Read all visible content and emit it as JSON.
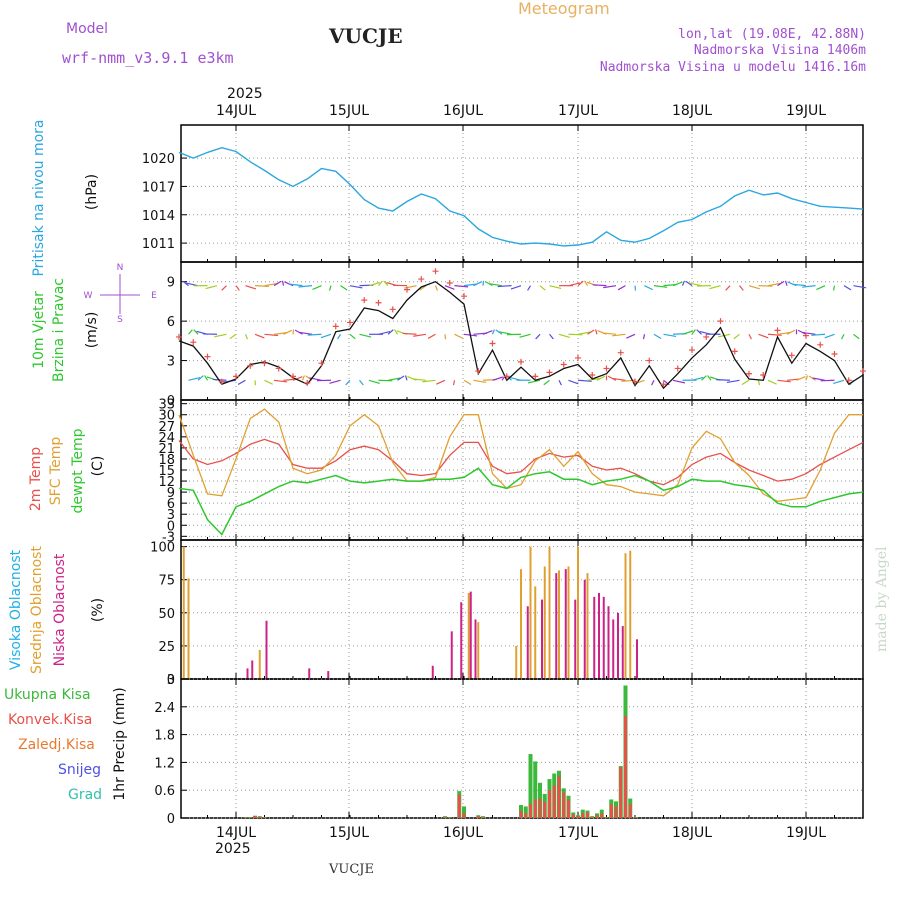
{
  "header": {
    "model_label": "Model",
    "model_name": "wrf-nmm_v3.9.1  e3km",
    "station": "VUCJE",
    "product": "Meteogram",
    "lonlat": "lon,lat (19.08E, 42.88N)",
    "elevation": "Nadmorska Visina 1406m",
    "elevation_model": "Nadmorska Visina u modelu 1416.16m",
    "watermark": "made by Angel",
    "footer_station": "VUCJE"
  },
  "colors": {
    "pressure": "#2aa6e0",
    "temp2m": "#e8504a",
    "sfc": "#e0a030",
    "dewpt": "#2ec82e",
    "high_cloud": "#20b0e8",
    "mid_cloud": "#e0a030",
    "low_cloud": "#cc2288",
    "precip_total": "#3cb83c",
    "precip_conv": "#e8504a",
    "precip_frozen": "#e87a30",
    "snow": "#5050e0",
    "hail": "#30c0b0",
    "purple_text": "#a050d0",
    "orange_text": "#e8b060"
  },
  "x_axis": {
    "year": "2025",
    "days": [
      "14JUL",
      "15JUL",
      "16JUL",
      "17JUL",
      "18JUL",
      "19JUL"
    ],
    "start_hour": 0,
    "end_hour": 144
  },
  "panels": {
    "pressure": {
      "label_a": "Pritisak na nivou mora",
      "label_b": "(hPa)",
      "ticks": [
        "1011",
        "1014",
        "1017",
        "1020"
      ]
    },
    "wind": {
      "label_a": "10m Vjetar",
      "label_b": "Brzina i Pravac",
      "label_c": "(m/s)",
      "ticks": [
        "0",
        "3",
        "6",
        "9"
      ],
      "compass": {
        "n": "N",
        "s": "S",
        "w": "W",
        "e": "E"
      }
    },
    "temp": {
      "label_a": "2m Temp",
      "label_b": "SFC Temp",
      "label_c": "dewpt Temp",
      "label_d": "(C)",
      "ticks": [
        "-3",
        "0",
        "3",
        "6",
        "9",
        "12",
        "15",
        "18",
        "21",
        "24",
        "27",
        "30",
        "33"
      ]
    },
    "cloud": {
      "label_a": "Visoka Oblacnost",
      "label_b": "Srednja Oblacnost",
      "label_c": "Niska Oblacnost",
      "label_d": "(%)",
      "ticks": [
        "0",
        "25",
        "50",
        "75",
        "100"
      ]
    },
    "precip": {
      "label_a": "1hr Precip (mm)",
      "legend": [
        "Ukupna Kisa",
        "Konvek.Kisa",
        "Zaledj.Kisa",
        "Snijeg",
        "Grad"
      ],
      "ticks": [
        "0",
        "0.6",
        "1.2",
        "1.8",
        "2.4",
        "3"
      ]
    }
  },
  "chart_data": [
    {
      "type": "line",
      "title": "Pritisak na nivou mora",
      "ylabel": "hPa",
      "ylim": [
        1009.0,
        1023.5
      ],
      "x": [
        0,
        3,
        6,
        9,
        12,
        15,
        18,
        21,
        24,
        27,
        30,
        33,
        36,
        39,
        42,
        45,
        48,
        51,
        54,
        57,
        60,
        63,
        66,
        69,
        72,
        75,
        78,
        81,
        84,
        87,
        90,
        93,
        96,
        99,
        102,
        105,
        108,
        111,
        114,
        117,
        120,
        123,
        126,
        129,
        132,
        135,
        138,
        141,
        144
      ],
      "series": [
        {
          "name": "Pritisak",
          "values": [
            1020.6,
            1020.0,
            1020.6,
            1021.1,
            1020.7,
            1019.6,
            1018.7,
            1017.7,
            1017.0,
            1017.8,
            1018.9,
            1018.6,
            1017.2,
            1015.6,
            1014.7,
            1014.4,
            1015.4,
            1016.2,
            1015.7,
            1014.4,
            1013.9,
            1012.5,
            1011.6,
            1011.2,
            1010.9,
            1011.0,
            1010.9,
            1010.7,
            1010.8,
            1011.1,
            1012.2,
            1011.3,
            1011.1,
            1011.5,
            1012.3,
            1013.2,
            1013.5,
            1014.3,
            1014.9,
            1016.0,
            1016.6,
            1016.1,
            1016.3,
            1015.7,
            1015.3,
            1014.9,
            1014.8,
            1014.7,
            1014.6
          ]
        }
      ]
    },
    {
      "type": "line",
      "title": "10m Vjetar Brzina i Pravac",
      "ylabel": "m/s",
      "ylim": [
        0,
        10.5
      ],
      "x": [
        0,
        3,
        6,
        9,
        12,
        15,
        18,
        21,
        24,
        27,
        30,
        33,
        36,
        39,
        42,
        45,
        48,
        51,
        54,
        57,
        60,
        63,
        66,
        69,
        72,
        75,
        78,
        81,
        84,
        87,
        90,
        93,
        96,
        99,
        102,
        105,
        108,
        111,
        114,
        117,
        120,
        123,
        126,
        129,
        132,
        135,
        138,
        141,
        144
      ],
      "series": [
        {
          "name": "10m speed",
          "values": [
            4.5,
            4.1,
            2.8,
            1.2,
            1.6,
            2.7,
            2.9,
            2.5,
            1.7,
            1.2,
            2.6,
            5.2,
            5.4,
            7.0,
            6.8,
            6.2,
            7.6,
            8.6,
            9.0,
            8.2,
            7.3,
            2.0,
            3.8,
            1.5,
            2.5,
            1.5,
            1.8,
            2.4,
            2.7,
            1.6,
            2.0,
            3.2,
            1.1,
            2.6,
            0.9,
            2.0,
            3.2,
            4.2,
            5.5,
            3.1,
            1.6,
            1.5,
            4.8,
            2.8,
            4.3,
            3.7,
            3.0,
            1.2,
            1.9
          ]
        },
        {
          "name": "10m gust",
          "values": [
            4.8,
            4.4,
            3.3,
            1.4,
            1.8,
            2.6,
            2.8,
            2.4,
            1.8,
            1.3,
            2.8,
            5.6,
            5.9,
            7.6,
            7.4,
            6.9,
            8.4,
            9.2,
            9.8,
            8.9,
            7.9,
            2.2,
            4.3,
            1.8,
            2.9,
            1.8,
            2.1,
            2.7,
            3.2,
            1.9,
            2.4,
            3.6,
            1.4,
            3.0,
            1.2,
            2.4,
            3.8,
            4.8,
            6.0,
            3.7,
            2.0,
            1.9,
            5.3,
            3.4,
            4.9,
            4.2,
            3.5,
            1.5,
            2.2
          ]
        }
      ]
    },
    {
      "type": "line",
      "title": "Temperatura",
      "ylabel": "C",
      "ylim": [
        -4,
        34
      ],
      "x": [
        0,
        3,
        6,
        9,
        12,
        15,
        18,
        21,
        24,
        27,
        30,
        33,
        36,
        39,
        42,
        45,
        48,
        51,
        54,
        57,
        60,
        63,
        66,
        69,
        72,
        75,
        78,
        81,
        84,
        87,
        90,
        93,
        96,
        99,
        102,
        105,
        108,
        111,
        114,
        117,
        120,
        123,
        126,
        129,
        132,
        135,
        138,
        141,
        144
      ],
      "series": [
        {
          "name": "2m Temp",
          "values": [
            23.0,
            18.0,
            16.5,
            17.5,
            19.5,
            22.0,
            23.3,
            22.0,
            16.5,
            15.5,
            15.5,
            17.5,
            20.5,
            21.5,
            20.5,
            17.5,
            14.0,
            13.5,
            14.0,
            19.0,
            22.5,
            22.5,
            16.0,
            14.0,
            14.5,
            18.0,
            19.5,
            18.5,
            19.0,
            16.0,
            15.0,
            15.5,
            14.0,
            12.0,
            11.0,
            13.0,
            16.5,
            18.5,
            19.5,
            17.0,
            15.0,
            13.5,
            12.0,
            12.5,
            14.0,
            16.5,
            18.5,
            20.5,
            22.5
          ]
        },
        {
          "name": "SFC Temp",
          "values": [
            30.0,
            19.0,
            8.5,
            8.0,
            18.0,
            29.0,
            31.5,
            28.0,
            15.5,
            14.0,
            15.0,
            19.0,
            27.0,
            30.0,
            27.0,
            17.0,
            12.0,
            12.0,
            13.0,
            24.0,
            30.0,
            30.0,
            14.0,
            10.0,
            11.0,
            17.5,
            20.5,
            16.0,
            20.0,
            14.0,
            11.0,
            10.5,
            9.0,
            8.5,
            8.0,
            11.0,
            21.0,
            25.5,
            23.5,
            17.0,
            13.5,
            8.5,
            6.5,
            7.0,
            7.5,
            15.0,
            25.0,
            30.0,
            30.0
          ]
        },
        {
          "name": "dewpt Temp",
          "values": [
            10.0,
            9.5,
            1.5,
            -2.5,
            5.0,
            6.5,
            8.5,
            10.5,
            12.0,
            11.5,
            12.5,
            13.5,
            12.0,
            11.5,
            12.0,
            12.5,
            12.0,
            12.0,
            12.5,
            12.5,
            13.0,
            15.5,
            11.0,
            10.0,
            13.0,
            14.0,
            14.5,
            12.5,
            12.5,
            11.0,
            12.0,
            12.5,
            13.5,
            12.0,
            9.5,
            10.5,
            12.5,
            12.0,
            12.0,
            11.0,
            10.5,
            9.5,
            6.0,
            5.0,
            5.0,
            6.5,
            7.5,
            8.5,
            9.0
          ]
        }
      ]
    },
    {
      "type": "bar",
      "title": "Oblacnost",
      "ylabel": "%",
      "ylim": [
        0,
        105
      ],
      "x": [
        1,
        2,
        14,
        15,
        16,
        17,
        18,
        27,
        31,
        53,
        57,
        59,
        61,
        62,
        63,
        64,
        65,
        66,
        71,
        72,
        73,
        74,
        75,
        76,
        77,
        78,
        79,
        80,
        81,
        82,
        83,
        84,
        85,
        86,
        87,
        88,
        89,
        90,
        91,
        92,
        93,
        94,
        95,
        96
      ],
      "series": [
        {
          "name": "Visoka Oblacnost",
          "values": [
            0,
            0,
            0,
            0,
            0,
            0,
            0,
            0,
            0,
            0,
            0,
            0,
            0,
            0,
            0,
            0,
            0,
            0,
            0,
            0,
            0,
            0,
            0,
            0,
            0,
            0,
            0,
            0,
            0,
            0,
            0,
            0,
            0,
            0,
            0,
            0,
            0,
            0,
            0,
            0,
            0,
            0,
            0,
            0
          ]
        },
        {
          "name": "Srednja Oblacnost",
          "values": [
            100,
            76,
            0,
            0,
            0,
            22,
            0,
            0,
            0,
            0,
            0,
            0,
            65,
            0,
            43,
            0,
            0,
            0,
            25,
            83,
            0,
            100,
            70,
            0,
            85,
            100,
            0,
            82,
            0,
            85,
            0,
            100,
            0,
            80,
            0,
            0,
            0,
            0,
            0,
            0,
            0,
            95,
            97,
            0
          ]
        },
        {
          "name": "Niska Oblacnost",
          "values": [
            0,
            0,
            8,
            14,
            0,
            0,
            44,
            8,
            6,
            10,
            36,
            58,
            66,
            45,
            0,
            0,
            0,
            0,
            0,
            0,
            55,
            0,
            0,
            60,
            0,
            0,
            80,
            0,
            83,
            0,
            60,
            0,
            75,
            0,
            62,
            65,
            62,
            55,
            45,
            50,
            40,
            0,
            0,
            30
          ]
        }
      ]
    },
    {
      "type": "bar",
      "title": "1hr Precip",
      "ylabel": "mm",
      "ylim": [
        0,
        3
      ],
      "x": [
        14,
        15,
        16,
        17,
        18,
        56,
        57,
        59,
        60,
        63,
        64,
        72,
        73,
        74,
        75,
        76,
        77,
        78,
        79,
        80,
        81,
        82,
        83,
        84,
        85,
        86,
        87,
        88,
        89,
        90,
        91,
        92,
        93,
        94,
        95,
        96
      ],
      "series": [
        {
          "name": "Ukupna Kisa",
          "values": [
            0.02,
            0.02,
            0.05,
            0.04,
            0.02,
            0.04,
            0.02,
            0.58,
            0.25,
            0.06,
            0.04,
            0.28,
            0.25,
            1.38,
            1.22,
            0.76,
            0.52,
            0.84,
            0.96,
            1.02,
            0.64,
            0.48,
            0.12,
            0.06,
            0.18,
            0.16,
            0.04,
            0.1,
            0.18,
            0.02,
            0.4,
            0.36,
            1.12,
            2.86,
            0.42,
            0.02
          ]
        },
        {
          "name": "Konvek.Kisa",
          "values": [
            0.01,
            0.01,
            0.04,
            0.03,
            0.01,
            0.02,
            0.01,
            0.5,
            0.1,
            0.04,
            0.02,
            0.15,
            0.1,
            0.3,
            0.4,
            0.42,
            0.35,
            0.6,
            0.7,
            0.9,
            0.55,
            0.4,
            0.08,
            0.04,
            0.1,
            0.12,
            0.02,
            0.06,
            0.1,
            0.01,
            0.3,
            0.25,
            1.1,
            2.2,
            0.3,
            0.01
          ]
        },
        {
          "name": "Zaledj.Kisa",
          "values": [
            0,
            0,
            0,
            0,
            0,
            0,
            0,
            0,
            0,
            0,
            0,
            0,
            0,
            0,
            0,
            0,
            0,
            0,
            0,
            0,
            0,
            0,
            0,
            0,
            0,
            0,
            0,
            0,
            0,
            0,
            0,
            0,
            0,
            0,
            0,
            0
          ]
        },
        {
          "name": "Snijeg",
          "values": [
            0,
            0,
            0,
            0,
            0,
            0,
            0,
            0,
            0,
            0,
            0,
            0,
            0,
            0,
            0,
            0,
            0,
            0,
            0,
            0,
            0,
            0,
            0,
            0,
            0,
            0,
            0,
            0,
            0,
            0,
            0,
            0,
            0,
            0,
            0,
            0
          ]
        },
        {
          "name": "Grad",
          "values": [
            0,
            0,
            0,
            0,
            0,
            0,
            0,
            0,
            0,
            0,
            0,
            0,
            0,
            0,
            0,
            0,
            0,
            0,
            0,
            0,
            0,
            0,
            0,
            0,
            0,
            0,
            0,
            0,
            0,
            0,
            0,
            0,
            0,
            0,
            0,
            0
          ]
        }
      ]
    }
  ]
}
